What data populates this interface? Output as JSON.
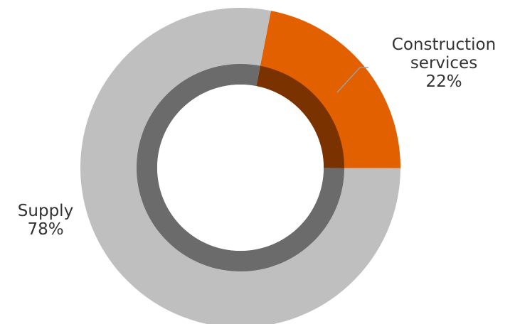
{
  "chart_data": {
    "type": "pie",
    "variant": "donut",
    "categories": [
      "Construction services",
      "Supply"
    ],
    "values": [
      22,
      78
    ],
    "unit": "%",
    "colors": [
      "#E36000",
      "#BFBFBF"
    ],
    "inner_ring_colors": [
      "#7A3300",
      "#6B6B6B"
    ],
    "labels": [
      {
        "line1": "Construction",
        "line2": "services",
        "value": "22%"
      },
      {
        "line1": "Supply",
        "value": "78%"
      }
    ],
    "legend": "none"
  }
}
